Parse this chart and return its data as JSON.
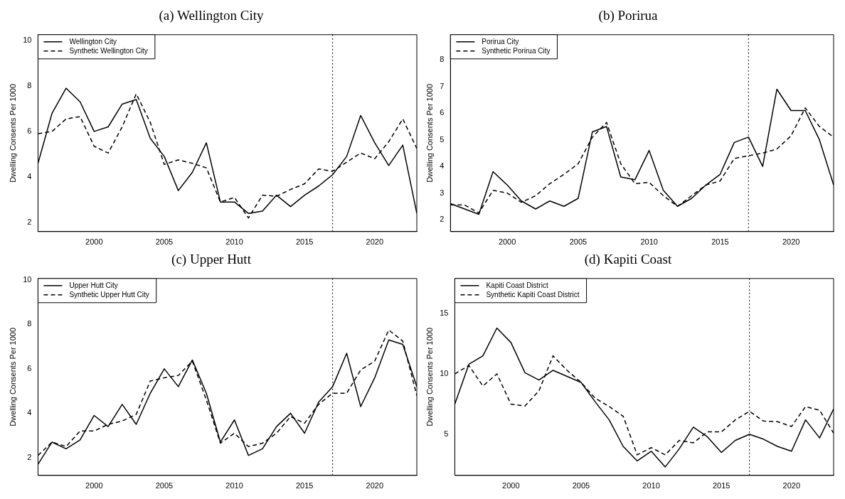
{
  "chart_data": [
    {
      "type": "line",
      "title": "(a) Wellington City",
      "ylabel": "Dwelling Consents Per 1000",
      "x": [
        1996,
        1997,
        1998,
        1999,
        2000,
        2001,
        2002,
        2003,
        2004,
        2005,
        2006,
        2007,
        2008,
        2009,
        2010,
        2011,
        2012,
        2013,
        2014,
        2015,
        2016,
        2017,
        2018,
        2019,
        2020,
        2021,
        2022,
        2023
      ],
      "xlim": [
        1996,
        2023
      ],
      "xticks": [
        2000,
        2005,
        2010,
        2015,
        2020
      ],
      "ylim": [
        1.6,
        10.25
      ],
      "yticks": [
        2,
        4,
        6,
        8,
        10
      ],
      "legend": "top left",
      "grid": false,
      "marker": "none",
      "series": [
        {
          "name": "Wellington City",
          "color": "#000000",
          "line_style": "solid",
          "values": [
            4.6,
            6.8,
            7.9,
            7.3,
            6.0,
            6.2,
            7.2,
            7.4,
            5.7,
            4.9,
            3.4,
            4.2,
            5.5,
            2.9,
            2.9,
            2.4,
            2.5,
            3.2,
            2.7,
            3.2,
            3.6,
            4.1,
            4.9,
            6.7,
            5.5,
            4.5,
            5.4,
            2.4
          ]
        },
        {
          "name": "Synthetic Wellington City",
          "color": "#000000",
          "line_style": "dashed",
          "values": [
            5.9,
            6.0,
            6.55,
            6.65,
            5.35,
            5.05,
            6.2,
            7.65,
            6.4,
            4.55,
            4.75,
            4.6,
            4.4,
            2.9,
            3.1,
            2.2,
            3.2,
            3.15,
            3.45,
            3.7,
            4.35,
            4.25,
            4.65,
            5.05,
            4.8,
            5.55,
            6.55,
            5.25
          ]
        }
      ],
      "ref_lines": [
        {
          "axis": "x",
          "value": 2017,
          "color": "#000000",
          "line_style": "dotted"
        }
      ]
    },
    {
      "type": "line",
      "title": "(b) Porirua",
      "ylabel": "Dwelling Consents Per 1000",
      "x": [
        1996,
        1997,
        1998,
        1999,
        2000,
        2001,
        2002,
        2003,
        2004,
        2005,
        2006,
        2007,
        2008,
        2009,
        2010,
        2011,
        2012,
        2013,
        2014,
        2015,
        2016,
        2017,
        2018,
        2019,
        2020,
        2021,
        2022,
        2023
      ],
      "xlim": [
        1996,
        2023
      ],
      "xticks": [
        2000,
        2005,
        2010,
        2015,
        2020
      ],
      "ylim": [
        1.55,
        8.95
      ],
      "yticks": [
        2,
        3,
        4,
        5,
        6,
        7,
        8
      ],
      "legend": "top left",
      "grid": false,
      "marker": "none",
      "series": [
        {
          "name": "Porirua City",
          "color": "#000000",
          "line_style": "solid",
          "values": [
            2.6,
            2.4,
            2.2,
            3.8,
            3.3,
            2.7,
            2.4,
            2.7,
            2.5,
            2.8,
            5.3,
            5.5,
            3.6,
            3.5,
            4.6,
            3.1,
            2.5,
            2.8,
            3.3,
            3.7,
            4.9,
            5.1,
            4.0,
            6.9,
            6.1,
            6.1,
            5.0,
            3.3
          ]
        },
        {
          "name": "Synthetic Porirua City",
          "color": "#000000",
          "line_style": "dashed",
          "values": [
            2.55,
            2.55,
            2.25,
            3.1,
            3.0,
            2.65,
            2.9,
            3.35,
            3.7,
            4.1,
            5.1,
            5.65,
            4.1,
            3.35,
            3.4,
            2.9,
            2.5,
            2.9,
            3.3,
            3.45,
            4.3,
            4.4,
            4.5,
            4.65,
            5.15,
            6.2,
            5.5,
            5.1
          ]
        }
      ],
      "ref_lines": [
        {
          "axis": "x",
          "value": 2017,
          "color": "#000000",
          "line_style": "dotted"
        }
      ]
    },
    {
      "type": "line",
      "title": "(c) Upper Hutt",
      "ylabel": "Dwelling Consents Per 1000",
      "x": [
        1996,
        1997,
        1998,
        1999,
        2000,
        2001,
        2002,
        2003,
        2004,
        2005,
        2006,
        2007,
        2008,
        2009,
        2010,
        2011,
        2012,
        2013,
        2014,
        2015,
        2016,
        2017,
        2018,
        2019,
        2020,
        2021,
        2022,
        2023
      ],
      "xlim": [
        1996,
        2023
      ],
      "xticks": [
        2000,
        2005,
        2010,
        2015,
        2020
      ],
      "ylim": [
        1.2,
        10.07
      ],
      "yticks": [
        2,
        4,
        6,
        8,
        10
      ],
      "legend": "top left",
      "grid": false,
      "marker": "none",
      "series": [
        {
          "name": "Upper Hutt City",
          "color": "#000000",
          "line_style": "solid",
          "values": [
            1.7,
            2.7,
            2.4,
            2.8,
            3.9,
            3.4,
            4.4,
            3.5,
            4.9,
            6.0,
            5.2,
            6.4,
            4.9,
            2.7,
            3.7,
            2.1,
            2.4,
            3.4,
            4.0,
            3.1,
            4.5,
            5.2,
            6.7,
            4.3,
            5.6,
            7.3,
            7.1,
            5.2
          ]
        },
        {
          "name": "Synthetic Upper Hutt City",
          "color": "#000000",
          "line_style": "dashed",
          "values": [
            2.1,
            2.7,
            2.5,
            3.2,
            3.2,
            3.5,
            3.65,
            3.95,
            5.45,
            5.6,
            5.7,
            6.35,
            4.6,
            2.65,
            3.1,
            2.5,
            2.65,
            3.1,
            3.85,
            3.55,
            4.4,
            4.9,
            4.9,
            5.95,
            6.35,
            7.75,
            7.25,
            4.8
          ]
        }
      ],
      "ref_lines": [
        {
          "axis": "x",
          "value": 2017,
          "color": "#000000",
          "line_style": "dotted"
        }
      ]
    },
    {
      "type": "line",
      "title": "(d) Kapiti Coast",
      "ylabel": "Dwelling Consents Per 1000",
      "x": [
        1996,
        1997,
        1998,
        1999,
        2000,
        2001,
        2002,
        2003,
        2004,
        2005,
        2006,
        2007,
        2008,
        2009,
        2010,
        2011,
        2012,
        2013,
        2014,
        2015,
        2016,
        2017,
        2018,
        2019,
        2020,
        2021,
        2022,
        2023
      ],
      "xlim": [
        1996,
        2023
      ],
      "xticks": [
        2000,
        2005,
        2010,
        2015,
        2020
      ],
      "ylim": [
        1.6,
        17.9
      ],
      "yticks": [
        5,
        10,
        15
      ],
      "legend": "top left",
      "grid": false,
      "marker": "none",
      "series": [
        {
          "name": "Kapiti Coast District",
          "color": "#000000",
          "line_style": "solid",
          "values": [
            7.5,
            10.8,
            11.5,
            13.8,
            12.6,
            10.1,
            9.5,
            10.3,
            9.8,
            9.3,
            7.7,
            6.2,
            4.0,
            2.8,
            3.6,
            2.3,
            3.8,
            5.6,
            4.8,
            3.5,
            4.5,
            5.0,
            4.6,
            4.0,
            3.6,
            6.2,
            4.7,
            7.1
          ]
        },
        {
          "name": "Synthetic Kapiti Coast District",
          "color": "#000000",
          "line_style": "dashed",
          "values": [
            10.0,
            10.7,
            9.0,
            10.0,
            7.5,
            7.35,
            8.6,
            11.5,
            10.3,
            9.3,
            8.0,
            7.3,
            6.5,
            3.3,
            3.9,
            3.3,
            4.5,
            4.3,
            5.2,
            5.2,
            6.2,
            6.9,
            6.1,
            6.05,
            5.65,
            7.3,
            7.0,
            5.1
          ]
        }
      ],
      "ref_lines": [
        {
          "axis": "x",
          "value": 2017,
          "color": "#000000",
          "line_style": "dotted"
        }
      ]
    }
  ]
}
